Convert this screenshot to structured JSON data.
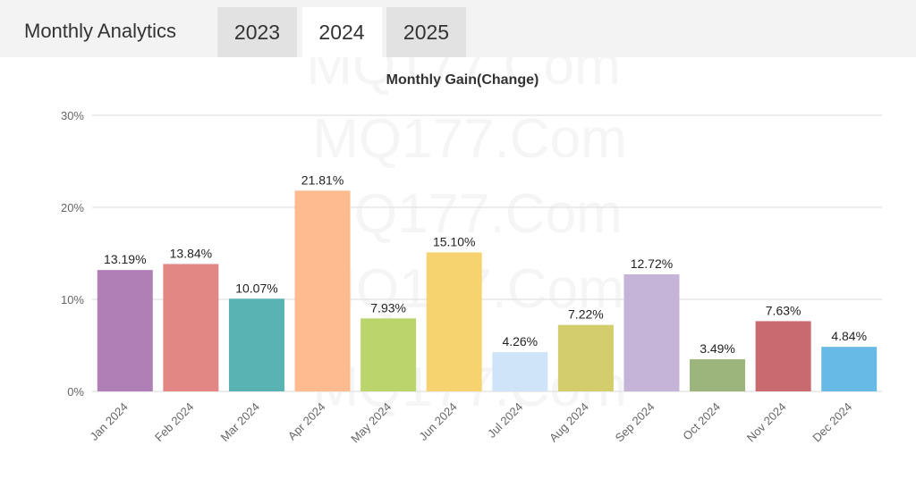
{
  "header": {
    "title": "Monthly Analytics",
    "tabs": [
      "2023",
      "2024",
      "2025"
    ],
    "active_tab": 1
  },
  "watermark": "MQ177.Com",
  "chart_data": {
    "type": "bar",
    "title": "Monthly Gain(Change)",
    "categories": [
      "Jan 2024",
      "Feb 2024",
      "Mar 2024",
      "Apr 2024",
      "May 2024",
      "Jun 2024",
      "Jul 2024",
      "Aug 2024",
      "Sep 2024",
      "Oct 2024",
      "Nov 2024",
      "Dec 2024"
    ],
    "values": [
      13.19,
      13.84,
      10.07,
      21.81,
      7.93,
      15.1,
      4.26,
      7.22,
      12.72,
      3.49,
      7.63,
      4.84
    ],
    "value_labels": [
      "13.19%",
      "13.84%",
      "10.07%",
      "21.81%",
      "7.93%",
      "15.10%",
      "4.26%",
      "7.22%",
      "12.72%",
      "3.49%",
      "7.63%",
      "4.84%"
    ],
    "colors": [
      "#b07fb5",
      "#e38785",
      "#59b3b3",
      "#ffbb90",
      "#b9d56b",
      "#f6d36f",
      "#cfe4f8",
      "#d3cd6b",
      "#c6b3d8",
      "#9bb57c",
      "#c96a6e",
      "#67b9e6"
    ],
    "ylim": [
      0,
      30
    ],
    "yticks": [
      {
        "value": 0,
        "label": "0%"
      },
      {
        "value": 10,
        "label": "10%"
      },
      {
        "value": 20,
        "label": "20%"
      },
      {
        "value": 30,
        "label": "30%"
      }
    ],
    "grid": true
  }
}
